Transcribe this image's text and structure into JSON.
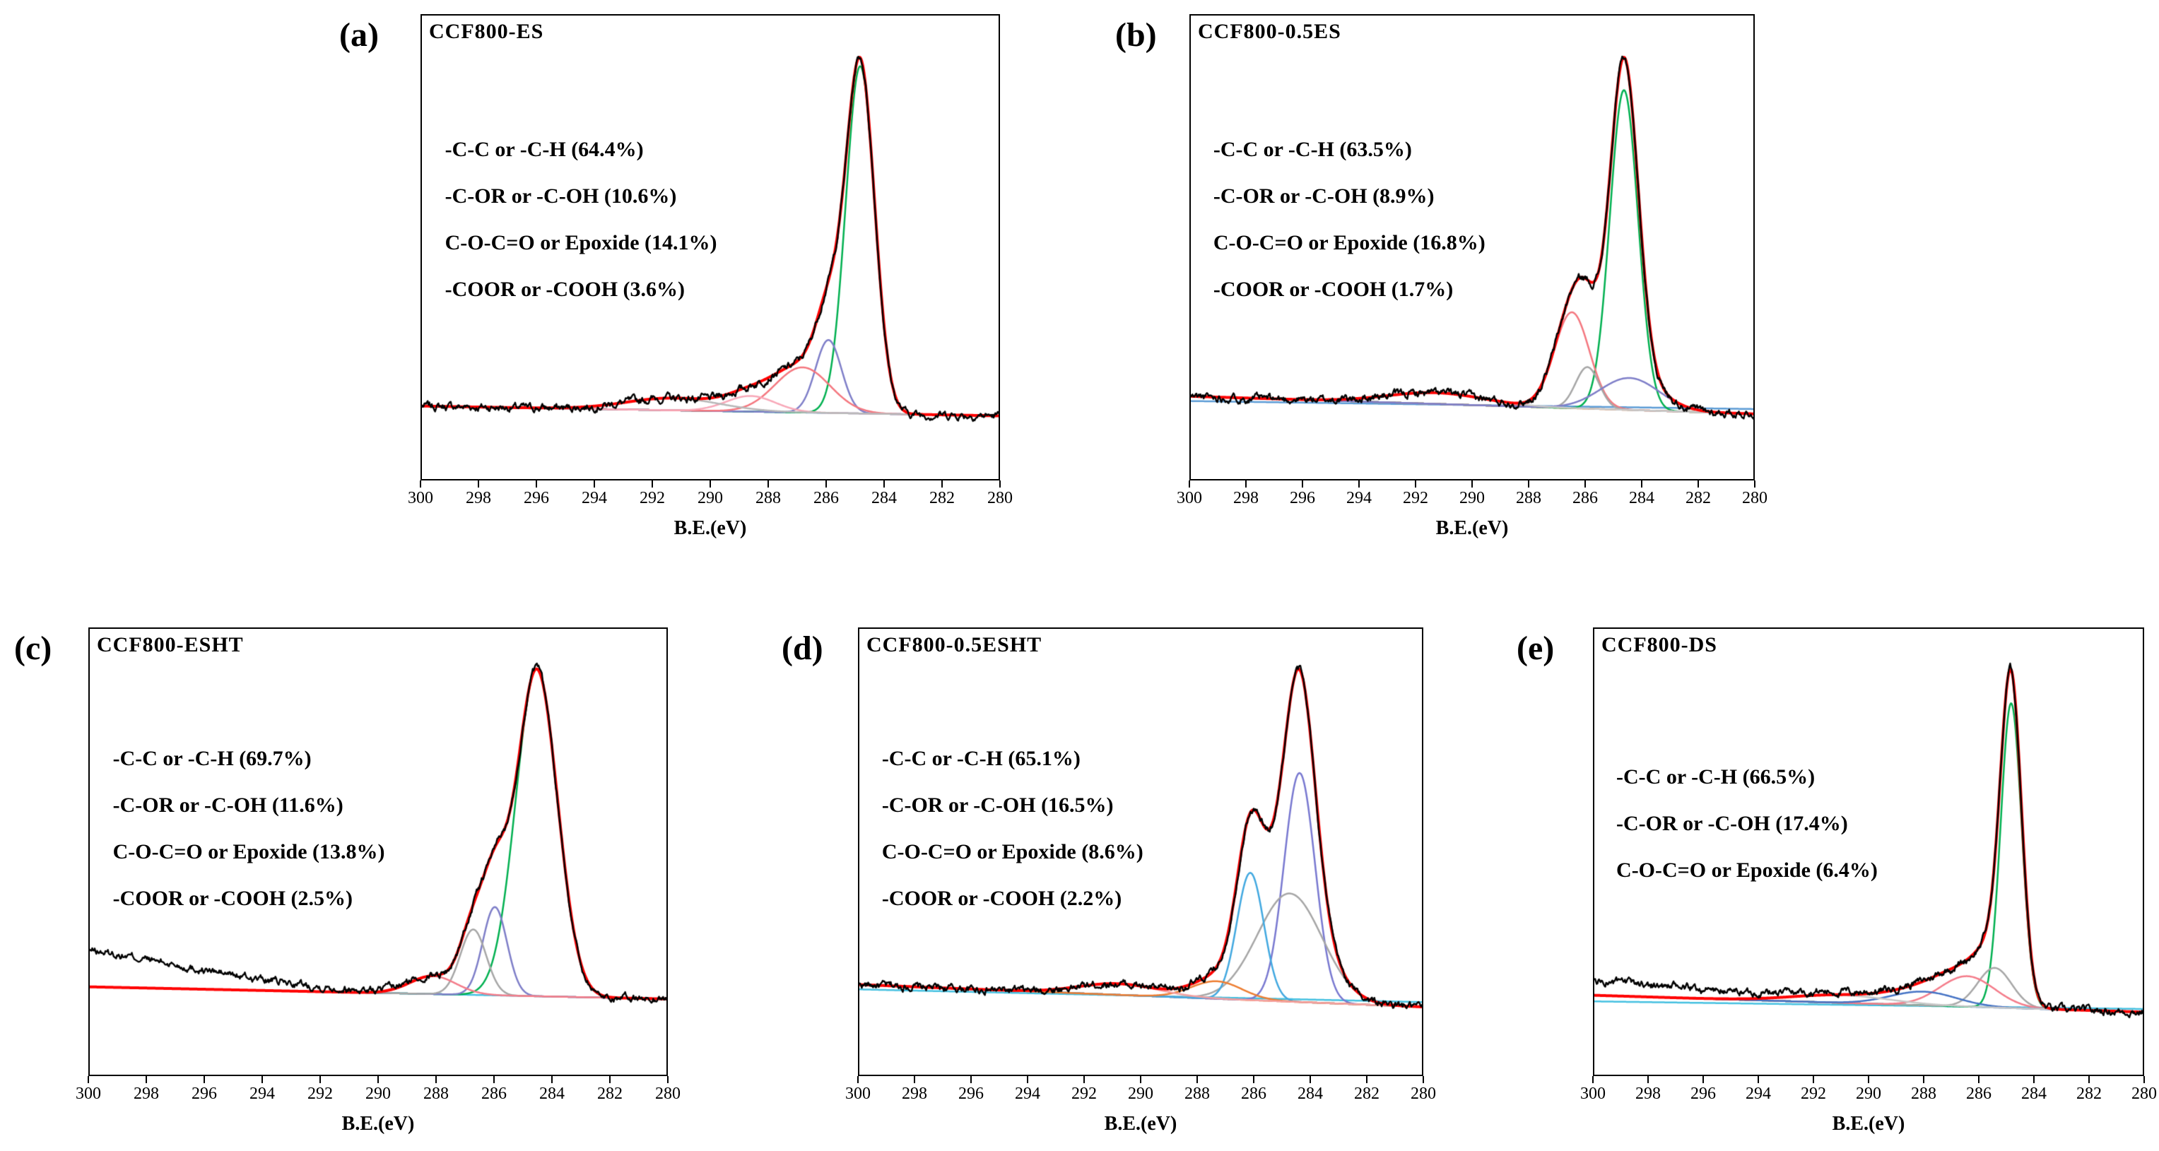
{
  "chart_data": [
    {
      "type": "line",
      "panel_label": "(a)",
      "title": "CCF800-ES",
      "xlabel": "B.E.(eV)",
      "x_range": [
        300,
        280
      ],
      "x_ticks": [
        "300",
        "298",
        "296",
        "294",
        "292",
        "290",
        "288",
        "286",
        "284",
        "282",
        "280"
      ],
      "annotations": [
        "-C-C or -C-H (64.4%)",
        "-C-OR or -C-OH (10.6%)",
        "C-O-C=O or Epoxide (14.1%)",
        "-COOR or -COOH (3.6%)"
      ],
      "data_color": "#000000",
      "envelope_color": "#ff0000",
      "peak_baseline": 0,
      "baselines": [
        {
          "name": "background",
          "color": "#5b9bd5",
          "y_left": 0.05,
          "y_right": 0.022
        }
      ],
      "peaks": [
        {
          "name": "-C-C or -C-H",
          "percent": 64.4,
          "center": 284.8,
          "sigma": 0.5,
          "amplitude": 1.0,
          "color": "#00b050"
        },
        {
          "name": "-C-OR or -C-OH",
          "percent": 10.6,
          "center": 285.9,
          "sigma": 0.45,
          "amplitude": 0.21,
          "color": "#7e7ec8"
        },
        {
          "name": "C-O-C=O or Epoxide",
          "percent": 14.1,
          "center": 286.8,
          "sigma": 0.95,
          "amplitude": 0.13,
          "color": "#f4777f"
        },
        {
          "name": "-COOR or -COOH",
          "percent": 3.6,
          "center": 288.6,
          "sigma": 0.85,
          "amplitude": 0.045,
          "color": "#f8a8b8"
        },
        {
          "name": "background-hump",
          "center": 291.3,
          "sigma": 1.6,
          "amplitude": 0.035,
          "color": "#b8b8b8"
        }
      ],
      "seed": 7
    },
    {
      "type": "line",
      "panel_label": "(b)",
      "title": "CCF800-0.5ES",
      "xlabel": "B.E.(eV)",
      "x_range": [
        300,
        280
      ],
      "x_ticks": [
        "300",
        "298",
        "296",
        "294",
        "292",
        "290",
        "288",
        "286",
        "284",
        "282",
        "280"
      ],
      "annotations": [
        "-C-C or -C-H (63.5%)",
        "-C-OR or -C-OH (8.9%)",
        "C-O-C=O or Epoxide (16.8%)",
        "-COOR or -COOH (1.7%)"
      ],
      "data_color": "#000000",
      "envelope_color": "#ff0000",
      "peak_baseline": 0,
      "baselines": [
        {
          "name": "background-1",
          "color": "#ed7d31",
          "y_left": 0.085,
          "y_right": 0.03
        },
        {
          "name": "background-2",
          "color": "#5b9bd5",
          "y_left": 0.07,
          "y_right": 0.045
        }
      ],
      "peaks": [
        {
          "name": "-C-C or -C-H",
          "percent": 63.5,
          "center": 284.6,
          "sigma": 0.5,
          "amplitude": 1.0,
          "color": "#00b050"
        },
        {
          "name": "C-O-C=O or Epoxide",
          "percent": 16.8,
          "center": 286.45,
          "sigma": 0.62,
          "amplitude": 0.3,
          "color": "#f4777f"
        },
        {
          "name": "-C-OR or -C-OH",
          "percent": 8.9,
          "center": 285.9,
          "sigma": 0.42,
          "amplitude": 0.13,
          "color": "#a6a6a6"
        },
        {
          "name": "-COOR or -COOH",
          "percent": 1.7,
          "center": 284.4,
          "sigma": 1.05,
          "amplitude": 0.1,
          "color": "#7e7ec8"
        },
        {
          "name": "background-hump",
          "center": 291.3,
          "sigma": 1.7,
          "amplitude": 0.035,
          "color": "#c8c8c8"
        }
      ],
      "seed": 11
    },
    {
      "type": "line",
      "panel_label": "(c)",
      "title": "CCF800-ESHT",
      "xlabel": "B.E.(eV)",
      "x_range": [
        300,
        280
      ],
      "x_ticks": [
        "300",
        "298",
        "296",
        "294",
        "292",
        "290",
        "288",
        "286",
        "284",
        "282",
        "280"
      ],
      "annotations": [
        "-C-C or -C-H (69.7%)",
        "-C-OR or -C-OH (11.6%)",
        "C-O-C=O or Epoxide (13.8%)",
        "-COOR or -COOH (2.5%)"
      ],
      "data_color": "#000000",
      "envelope_color": "#ff0000",
      "peak_baseline": 0,
      "baselines": [
        {
          "name": "background",
          "color": "#45c0e0",
          "y_left": 0.105,
          "y_right": 0.068
        }
      ],
      "peaks": [
        {
          "name": "-C-C or -C-H",
          "percent": 69.7,
          "center": 284.5,
          "sigma": 0.72,
          "amplitude": 1.0,
          "color": "#00b050"
        },
        {
          "name": "-C-OR or -C-OH",
          "percent": 11.6,
          "center": 285.95,
          "sigma": 0.42,
          "amplitude": 0.27,
          "color": "#7e7ec8"
        },
        {
          "name": "C-O-C=O or Epoxide",
          "percent": 13.8,
          "center": 286.7,
          "sigma": 0.45,
          "amplitude": 0.2,
          "color": "#a6a6a6"
        },
        {
          "name": "-COOR or -COOH",
          "percent": 2.5,
          "center": 288.1,
          "sigma": 0.8,
          "amplitude": 0.055,
          "color": "#f47c8a"
        }
      ],
      "data_extra": {
        "center": 302,
        "sigma": 5,
        "amplitude": 0.12
      },
      "seed": 13
    },
    {
      "type": "line",
      "panel_label": "(d)",
      "title": "CCF800-0.5ESHT",
      "xlabel": "B.E.(eV)",
      "x_range": [
        300,
        280
      ],
      "x_ticks": [
        "300",
        "298",
        "296",
        "294",
        "292",
        "290",
        "288",
        "286",
        "284",
        "282",
        "280"
      ],
      "annotations": [
        "-C-C or -C-H (65.1%)",
        "-C-OR or -C-OH (16.5%)",
        "C-O-C=O or Epoxide (8.6%)",
        "-COOR or -COOH (2.2%)"
      ],
      "data_color": "#000000",
      "envelope_color": "#ff0000",
      "peak_baseline": 0,
      "baselines": [
        {
          "name": "background-1",
          "color": "#ed7d31",
          "y_left": 0.115,
          "y_right": 0.045
        },
        {
          "name": "background-2",
          "color": "#45c0e0",
          "y_left": 0.1,
          "y_right": 0.06
        }
      ],
      "peaks": [
        {
          "name": "-C-C or -C-H",
          "percent": 65.1,
          "center": 284.35,
          "sigma": 0.55,
          "amplitude": 0.72,
          "color": "#7878d0"
        },
        {
          "name": "-C-OR or -C-OH",
          "percent": 16.5,
          "center": 284.7,
          "sigma": 1.15,
          "amplitude": 0.34,
          "color": "#a6a6a6"
        },
        {
          "name": "C-O-C=O or Epoxide",
          "percent": 8.6,
          "center": 286.1,
          "sigma": 0.48,
          "amplitude": 0.4,
          "color": "#41a8e0"
        },
        {
          "name": "-COOR or -COOH",
          "percent": 2.2,
          "center": 287.3,
          "sigma": 0.9,
          "amplitude": 0.055,
          "color": "#ed7d31"
        },
        {
          "name": "background-hump",
          "center": 290.8,
          "sigma": 1.4,
          "amplitude": 0.035,
          "color": "#f4a0a0"
        }
      ],
      "seed": 17
    },
    {
      "type": "line",
      "panel_label": "(e)",
      "title": "CCF800-DS",
      "xlabel": "B.E.(eV)",
      "x_range": [
        300,
        280
      ],
      "x_ticks": [
        "300",
        "298",
        "296",
        "294",
        "292",
        "290",
        "288",
        "286",
        "284",
        "282",
        "280"
      ],
      "annotations": [
        "-C-C or -C-H (66.5%)",
        "-C-OR or -C-OH (17.4%)",
        "C-O-C=O or Epoxide (6.4%)"
      ],
      "data_color": "#000000",
      "envelope_color": "#ff0000",
      "peak_baseline": 0,
      "baselines": [
        {
          "name": "background-1",
          "color": "#5b9bd5",
          "y_left": 0.085,
          "y_right": 0.03
        },
        {
          "name": "background-2",
          "color": "#45c0e0",
          "y_left": 0.065,
          "y_right": 0.04
        }
      ],
      "peaks": [
        {
          "name": "-C-C or -C-H",
          "percent": 66.5,
          "center": 284.8,
          "sigma": 0.38,
          "amplitude": 1.0,
          "color": "#00b050"
        },
        {
          "name": "-C-OR or -C-OH",
          "percent": 17.4,
          "center": 285.4,
          "sigma": 0.62,
          "amplitude": 0.13,
          "color": "#a6a6a6"
        },
        {
          "name": "C-O-C=O or Epoxide",
          "percent": 6.4,
          "center": 286.4,
          "sigma": 1.0,
          "amplitude": 0.1,
          "color": "#f47c8a"
        },
        {
          "name": "background-hump-1",
          "center": 288.0,
          "sigma": 1.2,
          "amplitude": 0.045,
          "color": "#4472c4"
        },
        {
          "name": "background-hump-2",
          "center": 291.0,
          "sigma": 1.8,
          "amplitude": 0.025,
          "color": "#c8c8c8"
        }
      ],
      "data_extra": {
        "center": 302,
        "sigma": 6,
        "amplitude": 0.05
      },
      "seed": 23
    }
  ]
}
